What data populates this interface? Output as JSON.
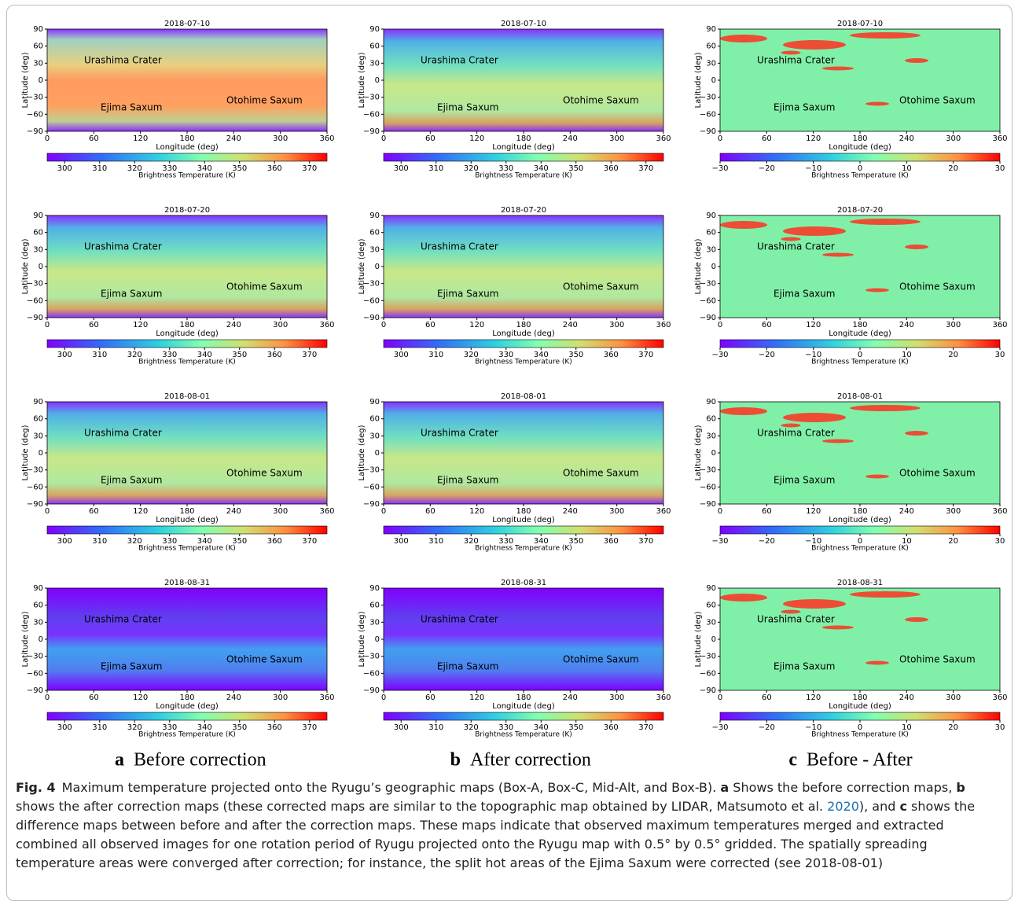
{
  "maps": {
    "dates": [
      "2018-07-10",
      "2018-07-20",
      "2018-08-01",
      "2018-08-31"
    ],
    "x_label": "Longitude (deg)",
    "y_label": "Latitude (deg)",
    "xlim": [
      0,
      360
    ],
    "xticks": [
      0,
      60,
      120,
      180,
      240,
      300,
      360
    ],
    "ylim": [
      -90,
      90
    ],
    "yticks": [
      {
        "value": -90,
        "label": "−90"
      },
      {
        "value": -60,
        "label": "−60"
      },
      {
        "value": -30,
        "label": "−30"
      },
      0,
      30,
      60,
      90
    ],
    "features": [
      "Urashima Crater",
      "Ejima Saxum",
      "Otohime Saxum"
    ],
    "colorbar_label": "Brightness Temperature (K)"
  },
  "columns": [
    {
      "letter": "a",
      "caption": "Before correction",
      "clim": [
        295,
        375
      ],
      "cticks": [
        300,
        310,
        320,
        330,
        340,
        350,
        360,
        370
      ]
    },
    {
      "letter": "b",
      "caption": "After correction",
      "clim": [
        295,
        375
      ],
      "cticks": [
        300,
        310,
        320,
        330,
        340,
        350,
        360,
        370
      ]
    },
    {
      "letter": "c",
      "caption": "Before - After",
      "clim": [
        -30,
        30
      ],
      "cticks": [
        {
          "value": -30,
          "label": "−30"
        },
        {
          "value": -20,
          "label": "−20"
        },
        {
          "value": -10,
          "label": "−10"
        },
        0,
        10,
        20,
        30
      ]
    }
  ],
  "figure_caption": {
    "label": "Fig. 4",
    "parts": [
      {
        "text": "Maximum temperature projected onto the Ryugu’s geographic maps (Box-A, Box-C, Mid-Alt, and Box-B). ",
        "style": "plain"
      },
      {
        "text": "a",
        "style": "bold"
      },
      {
        "text": " Shows the before correction maps, ",
        "style": "plain"
      },
      {
        "text": "b",
        "style": "bold"
      },
      {
        "text": " shows the after correction maps (these corrected maps are similar to the topographic map obtained by LIDAR, Matsumoto et al. ",
        "style": "plain"
      },
      {
        "text": "2020",
        "style": "link"
      },
      {
        "text": "), and ",
        "style": "plain"
      },
      {
        "text": "c",
        "style": "bold"
      },
      {
        "text": " shows the difference maps between before and after the correction maps. These maps indicate that observed maximum temperatures merged and extracted combined all observed images for one rotation period of Ryugu projected onto the Ryugu map with 0.5° by 0.5° gridded. The spatially spreading temperature areas were converged after correction; for instance, the split hot areas of the Ejima Saxum were corrected (see 2018-08-01)",
        "style": "plain"
      }
    ]
  }
}
